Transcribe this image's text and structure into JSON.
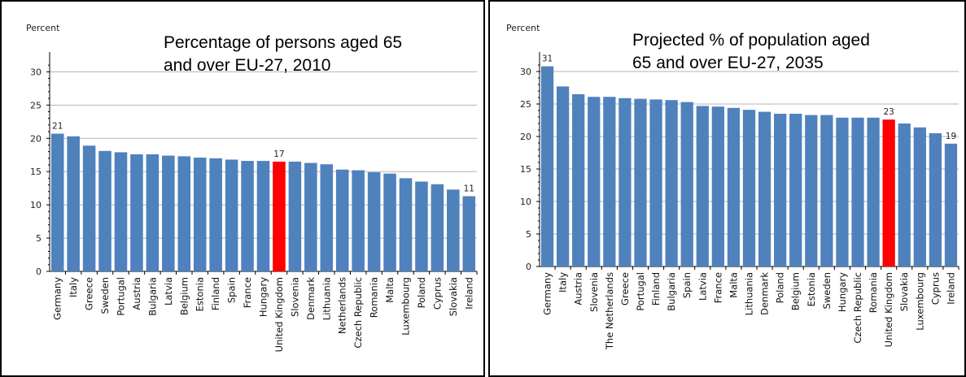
{
  "colors": {
    "bar": "#4f81bd",
    "highlight": "#ff0000",
    "grid": "#b3b3b3",
    "axis": "#000000"
  },
  "chart_data": [
    {
      "type": "bar",
      "title": "Percentage of persons aged 65\nand over EU-27, 2010",
      "ylabel": "Percent",
      "ylim": [
        0,
        32
      ],
      "yticks": [
        0,
        5,
        10,
        15,
        20,
        25,
        30
      ],
      "grid": true,
      "highlight_category": "United Kingdom",
      "categories": [
        "Germany",
        "Italy",
        "Greece",
        "Sweden",
        "Portugal",
        "Austria",
        "Bulgaria",
        "Latvia",
        "Belgium",
        "Estonia",
        "Finland",
        "Spain",
        "France",
        "Hungary",
        "United Kingdom",
        "Slovenia",
        "Denmark",
        "Lithuania",
        "Netherlands",
        "Czech Republic",
        "Romania",
        "Malta",
        "Luxembourg",
        "Poland",
        "Cyprus",
        "Slovakia",
        "Ireland"
      ],
      "values": [
        20.7,
        20.3,
        18.9,
        18.1,
        17.9,
        17.6,
        17.6,
        17.4,
        17.3,
        17.1,
        17.0,
        16.8,
        16.6,
        16.6,
        16.5,
        16.5,
        16.3,
        16.1,
        15.3,
        15.2,
        14.9,
        14.7,
        14.0,
        13.5,
        13.1,
        12.3,
        11.3
      ],
      "data_labels": [
        {
          "category": "Germany",
          "text": "21"
        },
        {
          "category": "United Kingdom",
          "text": "17"
        },
        {
          "category": "Ireland",
          "text": "11"
        }
      ]
    },
    {
      "type": "bar",
      "title": "Projected % of population aged\n65 and over EU-27, 2035",
      "ylabel": "Percent",
      "ylim": [
        0,
        32
      ],
      "yticks": [
        0,
        5,
        10,
        15,
        20,
        25,
        30
      ],
      "grid": true,
      "highlight_category": "United Kingdom",
      "categories": [
        "Germany",
        "Italy",
        "Austria",
        "Slovenia",
        "The Netherlands",
        "Greece",
        "Portugal",
        "Finland",
        "Bulgaria",
        "Spain",
        "Latvia",
        "France",
        "Malta",
        "Lithuania",
        "Denmark",
        "Poland",
        "Belgium",
        "Estonia",
        "Sweden",
        "Hungary",
        "Czech Republic",
        "Romania",
        "United Kingdom",
        "Slovakia",
        "Luxembourg",
        "Cyprus",
        "Ireland"
      ],
      "values": [
        30.8,
        27.7,
        26.5,
        26.1,
        26.1,
        25.9,
        25.8,
        25.7,
        25.6,
        25.3,
        24.7,
        24.6,
        24.4,
        24.1,
        23.8,
        23.5,
        23.5,
        23.3,
        23.3,
        22.9,
        22.9,
        22.9,
        22.6,
        22.0,
        21.4,
        20.5,
        18.9
      ],
      "data_labels": [
        {
          "category": "Germany",
          "text": "31"
        },
        {
          "category": "United Kingdom",
          "text": "23"
        },
        {
          "category": "Ireland",
          "text": "19"
        }
      ]
    }
  ]
}
